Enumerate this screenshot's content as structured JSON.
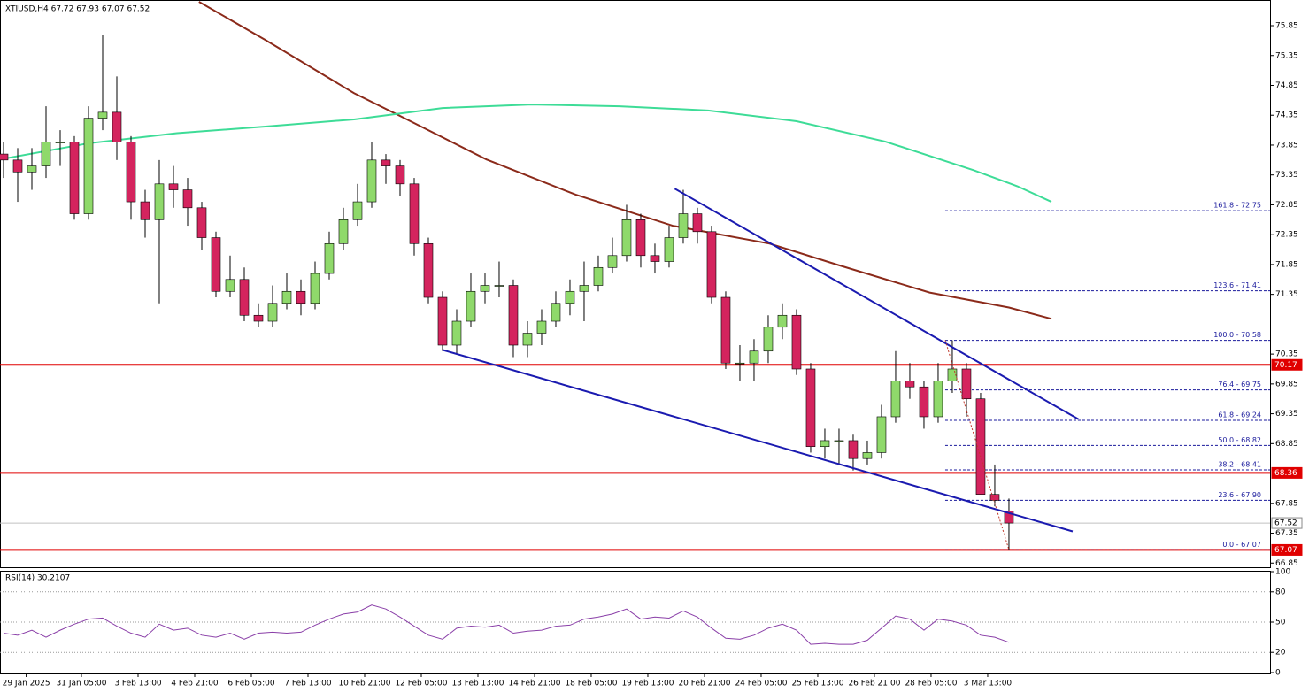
{
  "chart_data": {
    "type": "candlestick",
    "title": "XTIUSD,H4  67.72 67.93 67.07 67.52",
    "colors": {
      "up": "#8fd96b",
      "down": "#d4245e"
    },
    "xlim": [
      -0.25,
      89.44
    ],
    "ylim": [
      66.78,
      76.28
    ],
    "yticks": [
      66.85,
      67.35,
      67.85,
      68.85,
      69.35,
      69.85,
      70.35,
      71.35,
      71.85,
      72.35,
      72.85,
      73.35,
      73.85,
      74.35,
      74.85,
      75.35,
      75.85
    ],
    "xticks": [
      {
        "value": 1.6,
        "label": "29 Jan 2025"
      },
      {
        "value": 5.5,
        "label": "31 Jan 05:00"
      },
      {
        "value": 9.5,
        "label": "3 Feb 13:00"
      },
      {
        "value": 13.5,
        "label": "4 Feb 21:00"
      },
      {
        "value": 17.5,
        "label": "6 Feb 05:00"
      },
      {
        "value": 21.5,
        "label": "7 Feb 13:00"
      },
      {
        "value": 25.5,
        "label": "10 Feb 21:00"
      },
      {
        "value": 29.5,
        "label": "12 Feb 05:00"
      },
      {
        "value": 33.5,
        "label": "13 Feb 13:00"
      },
      {
        "value": 37.5,
        "label": "14 Feb 21:00"
      },
      {
        "value": 41.5,
        "label": "18 Feb 05:00"
      },
      {
        "value": 45.5,
        "label": "19 Feb 13:00"
      },
      {
        "value": 49.5,
        "label": "20 Feb 21:00"
      },
      {
        "value": 53.5,
        "label": "24 Feb 05:00"
      },
      {
        "value": 57.5,
        "label": "25 Feb 13:00"
      },
      {
        "value": 61.5,
        "label": "26 Feb 21:00"
      },
      {
        "value": 65.5,
        "label": "28 Feb 05:00"
      },
      {
        "value": 69.5,
        "label": "3 Mar 13:00"
      }
    ],
    "ohlc": [
      [
        73.7,
        73.9,
        73.3,
        73.6
      ],
      [
        73.6,
        73.8,
        72.9,
        73.4
      ],
      [
        73.4,
        73.8,
        73.1,
        73.5
      ],
      [
        73.5,
        74.5,
        73.3,
        73.9
      ],
      [
        73.9,
        74.1,
        73.5,
        73.9
      ],
      [
        73.9,
        74.0,
        72.6,
        72.7
      ],
      [
        72.7,
        74.5,
        72.6,
        74.3
      ],
      [
        74.3,
        75.7,
        74.1,
        74.4
      ],
      [
        74.4,
        75.0,
        73.6,
        73.9
      ],
      [
        73.9,
        74.0,
        72.6,
        72.9
      ],
      [
        72.9,
        73.1,
        72.3,
        72.6
      ],
      [
        72.6,
        73.6,
        71.2,
        73.2
      ],
      [
        73.2,
        73.5,
        72.8,
        73.1
      ],
      [
        73.1,
        73.3,
        72.5,
        72.8
      ],
      [
        72.8,
        72.9,
        72.1,
        72.3
      ],
      [
        72.3,
        72.4,
        71.3,
        71.4
      ],
      [
        71.4,
        72.0,
        71.3,
        71.6
      ],
      [
        71.6,
        71.8,
        70.9,
        71.0
      ],
      [
        71.0,
        71.2,
        70.8,
        70.9
      ],
      [
        70.9,
        71.5,
        70.8,
        71.2
      ],
      [
        71.2,
        71.7,
        71.1,
        71.4
      ],
      [
        71.4,
        71.6,
        71.0,
        71.2
      ],
      [
        71.2,
        71.9,
        71.1,
        71.7
      ],
      [
        71.7,
        72.4,
        71.6,
        72.2
      ],
      [
        72.2,
        72.8,
        72.1,
        72.6
      ],
      [
        72.6,
        73.2,
        72.5,
        72.9
      ],
      [
        72.9,
        73.9,
        72.8,
        73.6
      ],
      [
        73.6,
        73.7,
        73.2,
        73.5
      ],
      [
        73.5,
        73.6,
        73.0,
        73.2
      ],
      [
        73.2,
        73.3,
        72.0,
        72.2
      ],
      [
        72.2,
        72.3,
        71.2,
        71.3
      ],
      [
        71.3,
        71.4,
        70.4,
        70.5
      ],
      [
        70.5,
        71.1,
        70.35,
        70.9
      ],
      [
        70.9,
        71.7,
        70.8,
        71.4
      ],
      [
        71.4,
        71.7,
        71.2,
        71.5
      ],
      [
        71.5,
        71.9,
        71.3,
        71.5
      ],
      [
        71.5,
        71.6,
        70.3,
        70.5
      ],
      [
        70.5,
        70.9,
        70.3,
        70.7
      ],
      [
        70.7,
        71.1,
        70.5,
        70.9
      ],
      [
        70.9,
        71.4,
        70.8,
        71.2
      ],
      [
        71.2,
        71.6,
        71.0,
        71.4
      ],
      [
        71.4,
        71.9,
        70.9,
        71.5
      ],
      [
        71.5,
        72.0,
        71.4,
        71.8
      ],
      [
        71.8,
        72.3,
        71.7,
        72.0
      ],
      [
        72.0,
        72.85,
        71.9,
        72.6
      ],
      [
        72.6,
        72.7,
        71.8,
        72.0
      ],
      [
        72.0,
        72.2,
        71.7,
        71.9
      ],
      [
        71.9,
        72.5,
        71.8,
        72.3
      ],
      [
        72.3,
        73.1,
        72.2,
        72.7
      ],
      [
        72.7,
        72.8,
        72.2,
        72.4
      ],
      [
        72.4,
        72.5,
        71.2,
        71.3
      ],
      [
        71.3,
        71.4,
        70.1,
        70.2
      ],
      [
        70.2,
        70.5,
        69.9,
        70.2
      ],
      [
        70.2,
        70.6,
        69.9,
        70.4
      ],
      [
        70.4,
        71.0,
        70.2,
        70.8
      ],
      [
        70.8,
        71.2,
        70.6,
        71.0
      ],
      [
        71.0,
        71.1,
        70.0,
        70.1
      ],
      [
        70.1,
        70.2,
        68.7,
        68.8
      ],
      [
        68.8,
        69.1,
        68.6,
        68.9
      ],
      [
        68.9,
        69.1,
        68.5,
        68.9
      ],
      [
        68.9,
        69.0,
        68.4,
        68.6
      ],
      [
        68.6,
        68.9,
        68.5,
        68.7
      ],
      [
        68.7,
        69.5,
        68.6,
        69.3
      ],
      [
        69.3,
        70.4,
        69.2,
        69.9
      ],
      [
        69.9,
        70.2,
        69.6,
        69.8
      ],
      [
        69.8,
        69.9,
        69.1,
        69.3
      ],
      [
        69.3,
        70.2,
        69.2,
        69.9
      ],
      [
        69.9,
        70.58,
        69.7,
        70.1
      ],
      [
        70.1,
        70.2,
        69.3,
        69.6
      ],
      [
        69.6,
        69.7,
        68.0,
        68.0
      ],
      [
        68.0,
        68.5,
        67.8,
        67.9
      ],
      [
        67.72,
        67.93,
        67.07,
        67.52
      ]
    ],
    "moving_averages": [
      {
        "color": "#8b2a1a",
        "x": [
          13.8,
          18.5,
          24.75,
          27.9,
          34.1,
          40.4,
          47.25,
          54.1,
          59.1,
          65.4,
          71,
          74
        ],
        "values": [
          76.25,
          75.61,
          74.72,
          74.35,
          73.61,
          73.02,
          72.5,
          72.2,
          71.83,
          71.38,
          71.13,
          70.94
        ]
      },
      {
        "color": "#3ddc97",
        "x": [
          -0.25,
          6,
          12.25,
          18.5,
          24.75,
          31,
          37.25,
          43.5,
          49.75,
          56,
          62.25,
          68.5,
          71.6,
          74
        ],
        "values": [
          73.61,
          73.88,
          74.05,
          74.16,
          74.28,
          74.47,
          74.53,
          74.5,
          74.43,
          74.25,
          73.91,
          73.43,
          73.16,
          72.9
        ]
      }
    ],
    "trendlines": [
      {
        "color": "#1a1ab0",
        "x": [
          47.4,
          75.9
        ],
        "values": [
          73.12,
          69.26
        ]
      },
      {
        "color": "#1a1ab0",
        "x": [
          31,
          75.5
        ],
        "values": [
          70.42,
          67.38
        ]
      }
    ],
    "retracement_line": {
      "color": "#c0392b",
      "x": [
        66.5,
        71
      ],
      "values": [
        70.58,
        67.07
      ]
    },
    "fib_start_x": 66.5,
    "fib_color": "#1a1a9c",
    "fib_levels": [
      {
        "label": "161.8 - 72.75",
        "value": 72.75
      },
      {
        "label": "123.6 - 71.41",
        "value": 71.41
      },
      {
        "label": "100.0 - 70.58",
        "value": 70.58
      },
      {
        "label": "76.4 - 69.75",
        "value": 69.75
      },
      {
        "label": "61.8 - 69.24",
        "value": 69.24
      },
      {
        "label": "50.0 - 68.82",
        "value": 68.82
      },
      {
        "label": "38.2 - 68.41",
        "value": 68.41
      },
      {
        "label": "23.6 - 67.90",
        "value": 67.9
      },
      {
        "label": "0.0 - 67.07",
        "value": 67.07
      }
    ],
    "levels": [
      {
        "value": 70.17,
        "color": "#e00000"
      },
      {
        "value": 68.36,
        "color": "#e00000"
      },
      {
        "value": 67.52,
        "color": "#c0c0c0"
      },
      {
        "value": 67.07,
        "color": "#e00000"
      }
    ],
    "rsi": {
      "label": "RSI(14) 30.2107",
      "color": "#8a3fa8",
      "ylim": [
        0,
        100
      ],
      "yticks": [
        100,
        80,
        50,
        20,
        0
      ],
      "values": [
        39,
        37,
        42,
        35,
        42,
        48,
        53,
        54,
        46,
        39,
        35,
        48,
        42,
        44,
        37,
        35,
        39,
        33,
        39,
        40,
        39,
        40,
        47,
        53,
        58,
        60,
        67,
        63,
        55,
        46,
        37,
        33,
        44,
        46,
        45,
        47,
        39,
        41,
        42,
        46,
        47,
        53,
        55,
        58,
        63,
        53,
        55,
        54,
        61,
        55,
        44,
        34,
        33,
        37,
        44,
        48,
        42,
        28,
        29,
        28,
        28,
        32,
        44,
        56,
        53,
        42,
        53,
        51,
        47,
        37,
        35,
        30
      ]
    }
  }
}
